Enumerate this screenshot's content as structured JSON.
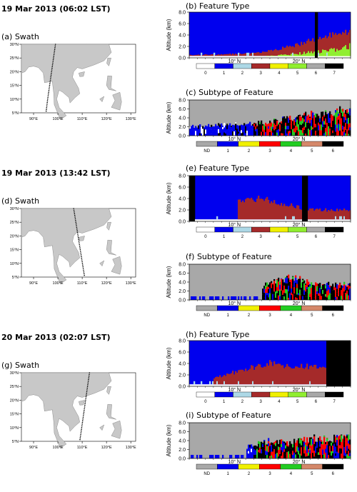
{
  "sections": [
    {
      "date": "19 Mar 2013 (06:02 LST)",
      "swath_label": "(a)   Swath",
      "feature_label": "(b) Feature Type",
      "subtype_label": "(c) Subtype of Feature",
      "swath_track": {
        "lon": [
          99,
          98.2,
          97.4,
          96.6,
          95.8,
          95.1
        ],
        "lat": [
          30,
          25,
          20,
          15,
          10,
          5
        ]
      }
    },
    {
      "date": "19 Mar 2013 (13:42 LST)",
      "swath_label": "(d) Swath",
      "feature_label": "(e) Feature Type",
      "subtype_label": "(f) Subtype of Feature",
      "swath_track": {
        "lon": [
          106.5,
          107.4,
          108.3,
          109.2,
          110.1,
          111
        ],
        "lat": [
          30,
          25,
          20,
          15,
          10,
          5
        ]
      }
    },
    {
      "date": "20 Mar 2013 (02:07 LST)",
      "swath_label": "(g) Swath",
      "feature_label": "(h) Feature Type",
      "subtype_label": "(i) Subtype of Feature",
      "swath_track": {
        "lon": [
          113,
          112.2,
          111.4,
          110.6,
          109.8,
          109
        ],
        "lat": [
          30,
          25,
          20,
          15,
          10,
          5
        ]
      }
    }
  ],
  "map_axes": {
    "lon_ticks": [
      "90°E",
      "100°E",
      "110°E",
      "120°E",
      "130°E"
    ],
    "lat_ticks": [
      "30°N",
      "25°N",
      "20°N",
      "15°N",
      "10°N",
      "5°N"
    ],
    "lon_range": [
      85,
      132
    ],
    "lat_range": [
      5,
      30
    ]
  },
  "curtain_axes": {
    "ylabel": "Altitude (km)",
    "y_ticks": [
      "8.0",
      "6.0",
      "4.0",
      "2.0",
      "0.0"
    ],
    "x_ticks": [
      "10° N",
      "20° N"
    ],
    "ylim": [
      0,
      8
    ]
  },
  "colors": {
    "clear_air": "#a8a8a8",
    "cloud": "#0000ee",
    "aerosol_brown": "#a52a2a",
    "ground": "#ffffff",
    "light_blue": "#add8e6",
    "yellow": "#f0f000",
    "lime": "#90ee30",
    "red": "#ff0000",
    "green": "#22cc22",
    "black": "#000000",
    "land": "#c8c8c8",
    "coast": "#8c8c8c"
  },
  "legend_feature": {
    "labels": [
      "0",
      "1",
      "2",
      "3",
      "4",
      "5",
      "6",
      "7"
    ],
    "colors": [
      "#ffffff",
      "#0000ee",
      "#add8e6",
      "#a52a2a",
      "#f0f000",
      "#90ee30",
      "#a8a8a8",
      "#000000"
    ]
  },
  "legend_subtype": {
    "labels": [
      "ND",
      "1",
      "2",
      "3",
      "4",
      "5",
      "6"
    ],
    "colors": [
      "#a8a8a8",
      "#0000ee",
      "#f0f000",
      "#ff0000",
      "#22cc22",
      "#d4886a",
      "#000000"
    ]
  },
  "chart_data": [
    {
      "type": "heatmap",
      "title": "(b) Feature Type",
      "ylabel": "Altitude (km)",
      "ylim": [
        0,
        8
      ],
      "x_ticks": [
        "10° N",
        "20° N"
      ],
      "legend": [
        "0",
        "1",
        "2",
        "3",
        "4",
        "5",
        "6",
        "7"
      ],
      "series": [
        {
          "name": "3",
          "x": [
            0.0,
            0.2,
            0.4,
            0.55,
            0.7,
            0.85,
            1.0
          ],
          "values": [
            0.5,
            0.6,
            0.8,
            1.5,
            2.5,
            4.0,
            4.5
          ]
        },
        {
          "name": "5",
          "x": [
            0.0,
            0.3,
            0.5,
            0.7,
            0.85,
            1.0
          ],
          "values": [
            0.1,
            0.2,
            0.3,
            0.8,
            1.2,
            2.0
          ]
        }
      ]
    },
    {
      "type": "heatmap",
      "title": "(c) Subtype of Feature",
      "ylabel": "Altitude (km)",
      "ylim": [
        0,
        8
      ],
      "x_ticks": [
        "10° N",
        "20° N"
      ],
      "legend": [
        "ND",
        "1",
        "2",
        "3",
        "4",
        "5",
        "6"
      ],
      "series": [
        {
          "name": "top",
          "x": [
            0.0,
            0.25,
            0.5,
            0.7,
            0.85,
            1.0
          ],
          "values": [
            2.0,
            2.5,
            3.0,
            4.5,
            5.0,
            6.0
          ]
        }
      ]
    },
    {
      "type": "heatmap",
      "title": "(e) Feature Type",
      "ylabel": "Altitude (km)",
      "ylim": [
        0,
        8
      ],
      "x_ticks": [
        "10° N",
        "20° N"
      ],
      "legend": [
        "0",
        "1",
        "2",
        "3",
        "4",
        "5",
        "6",
        "7"
      ],
      "series": [
        {
          "name": "3",
          "x": [
            0.3,
            0.45,
            0.6,
            0.75
          ],
          "values": [
            3.5,
            4.0,
            3.0,
            2.0
          ]
        }
      ]
    },
    {
      "type": "heatmap",
      "title": "(f) Subtype of Feature",
      "ylabel": "Altitude (km)",
      "ylim": [
        0,
        8
      ],
      "x_ticks": [
        "10° N",
        "20° N"
      ],
      "legend": [
        "ND",
        "1",
        "2",
        "3",
        "4",
        "5",
        "6"
      ],
      "series": [
        {
          "name": "top",
          "x": [
            0.45,
            0.55,
            0.65,
            0.8
          ],
          "values": [
            3.0,
            4.5,
            5.0,
            3.5
          ]
        }
      ]
    },
    {
      "type": "heatmap",
      "title": "(h) Feature Type",
      "ylabel": "Altitude (km)",
      "ylim": [
        0,
        8
      ],
      "x_ticks": [
        "10° N",
        "20° N"
      ],
      "legend": [
        "0",
        "1",
        "2",
        "3",
        "4",
        "5",
        "6",
        "7"
      ],
      "series": [
        {
          "name": "3",
          "x": [
            0.15,
            0.35,
            0.5,
            0.6
          ],
          "values": [
            1.5,
            3.0,
            4.0,
            3.5
          ]
        }
      ]
    },
    {
      "type": "heatmap",
      "title": "(i) Subtype of Feature",
      "ylabel": "Altitude (km)",
      "ylim": [
        0,
        8
      ],
      "x_ticks": [
        "10° N",
        "20° N"
      ],
      "legend": [
        "ND",
        "1",
        "2",
        "3",
        "4",
        "5",
        "6"
      ],
      "series": [
        {
          "name": "top",
          "x": [
            0.35,
            0.5,
            0.6,
            0.75
          ],
          "values": [
            2.5,
            4.0,
            3.5,
            4.5
          ]
        }
      ]
    }
  ]
}
